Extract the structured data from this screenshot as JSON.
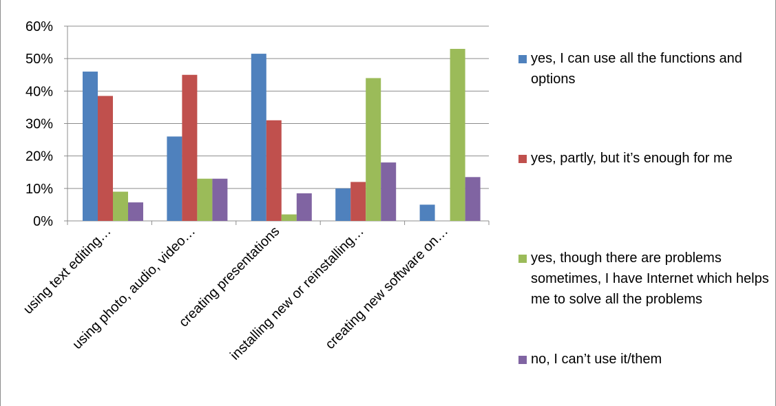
{
  "chart_data": {
    "type": "bar",
    "title": "",
    "xlabel": "",
    "ylabel": "",
    "ylim": [
      0,
      0.6
    ],
    "yticks": [
      "0%",
      "10%",
      "20%",
      "30%",
      "40%",
      "50%",
      "60%"
    ],
    "grid": true,
    "legend_position": "right",
    "categories": [
      "using text editing…",
      "using photo, audio, video…",
      "creating presentations",
      "installing new or reinstalling…",
      "creating new software on…"
    ],
    "series": [
      {
        "name": "yes, I can use all the functions and options",
        "color": "#4f81bd",
        "values": [
          0.46,
          0.26,
          0.515,
          0.1,
          0.05
        ]
      },
      {
        "name": "yes, partly, but it’s enough for me",
        "color": "#c0504d",
        "values": [
          0.385,
          0.45,
          0.31,
          0.12,
          0.0
        ]
      },
      {
        "name": "yes, though there are problems sometimes, I have Internet which helps me to solve all the problems",
        "color": "#9bbb59",
        "values": [
          0.09,
          0.13,
          0.02,
          0.44,
          0.53
        ]
      },
      {
        "name": "no, I can’t use it/them",
        "color": "#8064a2",
        "values": [
          0.057,
          0.13,
          0.085,
          0.18,
          0.135
        ]
      }
    ]
  }
}
